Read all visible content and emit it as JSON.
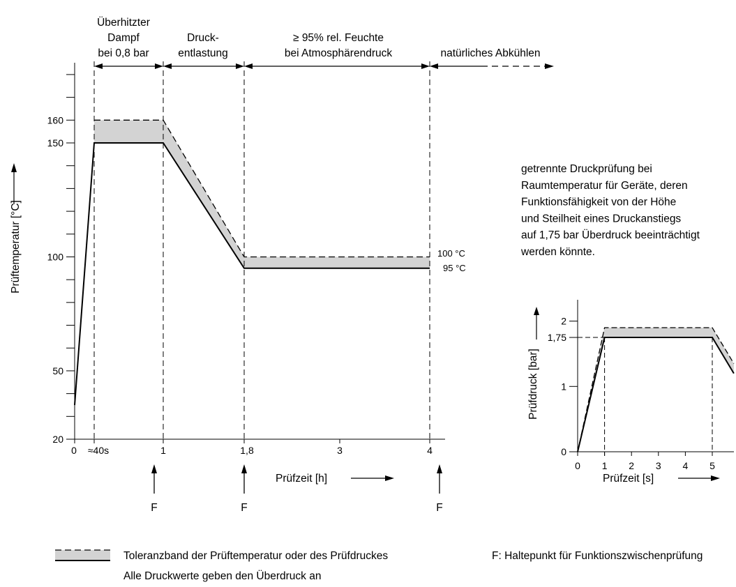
{
  "colors": {
    "band": "#d3d3d3",
    "line": "#000000"
  },
  "phases": [
    {
      "lines": [
        "Überhitzter",
        "Dampf",
        "bei 0,8 bar"
      ]
    },
    {
      "lines": [
        "Druck-",
        "entlastung"
      ]
    },
    {
      "lines": [
        "≥  95% rel. Feuchte",
        "bei Atmosphärendruck"
      ]
    },
    {
      "lines": [
        "natürliches Abkühlen"
      ]
    }
  ],
  "note_lines": [
    "getrennte Druckprüfung bei",
    "Raumtemperatur für Geräte, deren",
    "Funktionsfähigkeit von der Höhe",
    "und Steilheit eines Druckanstiegs",
    "auf 1,75 bar Überdruck beeinträchtigt",
    "werden könnte."
  ],
  "hold_marker_label": "F",
  "legend": {
    "band_lines": [
      "Toleranzband der Prüftemperatur oder des Prüfdruckes",
      "Alle Druckwerte geben den Überdruck an"
    ],
    "f_note": "F: Haltepunkt für Funktionszwischenprüfung"
  },
  "chart_data": [
    {
      "type": "line",
      "ylabel": "Prüftemperatur [°C]",
      "xlabel": "Prüfzeit [h]",
      "y_ticks": [
        20,
        50,
        100,
        150,
        160
      ],
      "x_tick_labels": [
        "0",
        "≈40s",
        "1",
        "1,8",
        "3",
        "4"
      ],
      "hold_points_h": [
        1,
        1.8,
        4
      ],
      "series": [
        {
          "x": [
            "0",
            "≈40s",
            "1",
            "1,8",
            "4"
          ],
          "lower": [
            35,
            150,
            150,
            95,
            95
          ],
          "upper": [
            35,
            160,
            160,
            100,
            100
          ]
        }
      ],
      "band_end_labels": [
        "100 °C",
        "95 °C"
      ]
    },
    {
      "type": "line",
      "ylabel": "Prüfdruck [bar]",
      "xlabel": "Prüfzeit [s]",
      "y_ticks": [
        "0",
        "1",
        "1,75",
        "2"
      ],
      "x_ticks": [
        0,
        1,
        2,
        3,
        4,
        5
      ],
      "series": [
        {
          "x": [
            0,
            1,
            5,
            5.8
          ],
          "lower": [
            0,
            1.75,
            1.75,
            1.2
          ],
          "upper": [
            0,
            1.9,
            1.9,
            1.35
          ]
        }
      ]
    }
  ]
}
